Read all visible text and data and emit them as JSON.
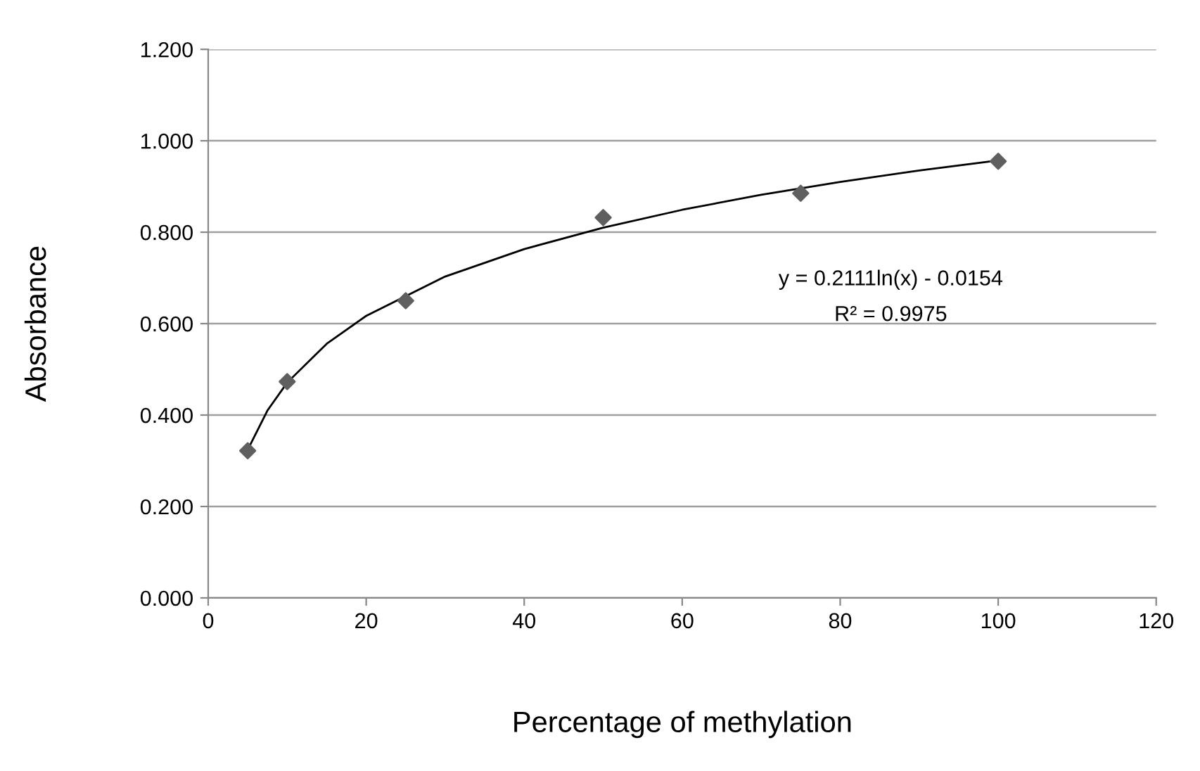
{
  "chart_data": {
    "type": "scatter",
    "xlabel": "Percentage of methylation",
    "ylabel": "Absorbance",
    "series": [
      {
        "color": "#5f5f5f",
        "marker": "diamond",
        "x": [
          5,
          10,
          25,
          50,
          75,
          100
        ],
        "values": [
          0.322,
          0.473,
          0.65,
          0.832,
          0.885,
          0.955
        ]
      },
      {
        "type": "line",
        "color": "#000000",
        "marker": "none",
        "x": [
          5,
          7.5,
          10,
          15,
          20,
          30,
          40,
          50,
          60,
          70,
          80,
          90,
          100
        ],
        "values": [
          0.324,
          0.41,
          0.471,
          0.556,
          0.617,
          0.703,
          0.763,
          0.81,
          0.849,
          0.882,
          0.91,
          0.935,
          0.957
        ]
      }
    ],
    "xlim": [
      0,
      120
    ],
    "xticks": [
      0,
      20,
      40,
      60,
      80,
      100,
      120
    ],
    "ylim": [
      0,
      1.2
    ],
    "yticks": [
      {
        "value": 0,
        "label": "0.000"
      },
      {
        "value": 0.2,
        "label": "0.200"
      },
      {
        "value": 0.4,
        "label": "0.400"
      },
      {
        "value": 0.6,
        "label": "0.600"
      },
      {
        "value": 0.8,
        "label": "0.800"
      },
      {
        "value": 1.0,
        "label": "1.000"
      },
      {
        "value": 1.2,
        "label": "1.200"
      }
    ],
    "grid": "y",
    "annotations": [
      "y = 0.2111ln(x) - 0.0154",
      "R² = 0.9975"
    ]
  }
}
